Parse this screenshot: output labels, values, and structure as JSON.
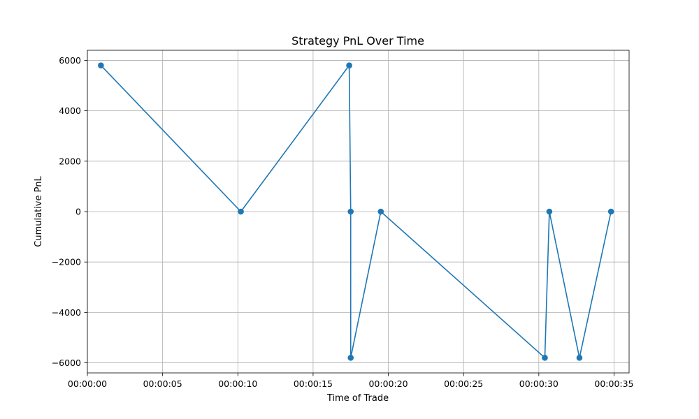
{
  "chart_data": {
    "type": "line",
    "title": "Strategy PnL Over Time",
    "xlabel": "Time of Trade",
    "ylabel": "Cumulative PnL",
    "x_tick_labels": [
      "00:00:00",
      "00:00:05",
      "00:00:10",
      "00:00:15",
      "00:00:20",
      "00:00:25",
      "00:00:30",
      "00:00:35"
    ],
    "y_tick_labels": [
      "6000",
      "4000",
      "2000",
      "0",
      "−2000",
      "−4000",
      "−6000"
    ],
    "x_ticks": [
      0,
      5,
      10,
      15,
      20,
      25,
      30,
      35
    ],
    "y_ticks": [
      6000,
      4000,
      2000,
      0,
      -2000,
      -4000,
      -6000
    ],
    "xlim": [
      "00:00:00",
      "00:00:36"
    ],
    "ylim": [
      -6400,
      6400
    ],
    "grid": true,
    "marker": "circle",
    "series": [
      {
        "color": "#1f77b4",
        "x": [
          "00:00:00.9",
          "00:00:10.2",
          "00:00:17.4",
          "00:00:17.5",
          "00:00:17.5",
          "00:00:19.5",
          "00:00:30.4",
          "00:00:30.7",
          "00:00:32.7",
          "00:00:34.8"
        ],
        "values": [
          5800,
          0,
          5800,
          0,
          -5800,
          0,
          -5800,
          0,
          -5800,
          0
        ]
      }
    ]
  }
}
